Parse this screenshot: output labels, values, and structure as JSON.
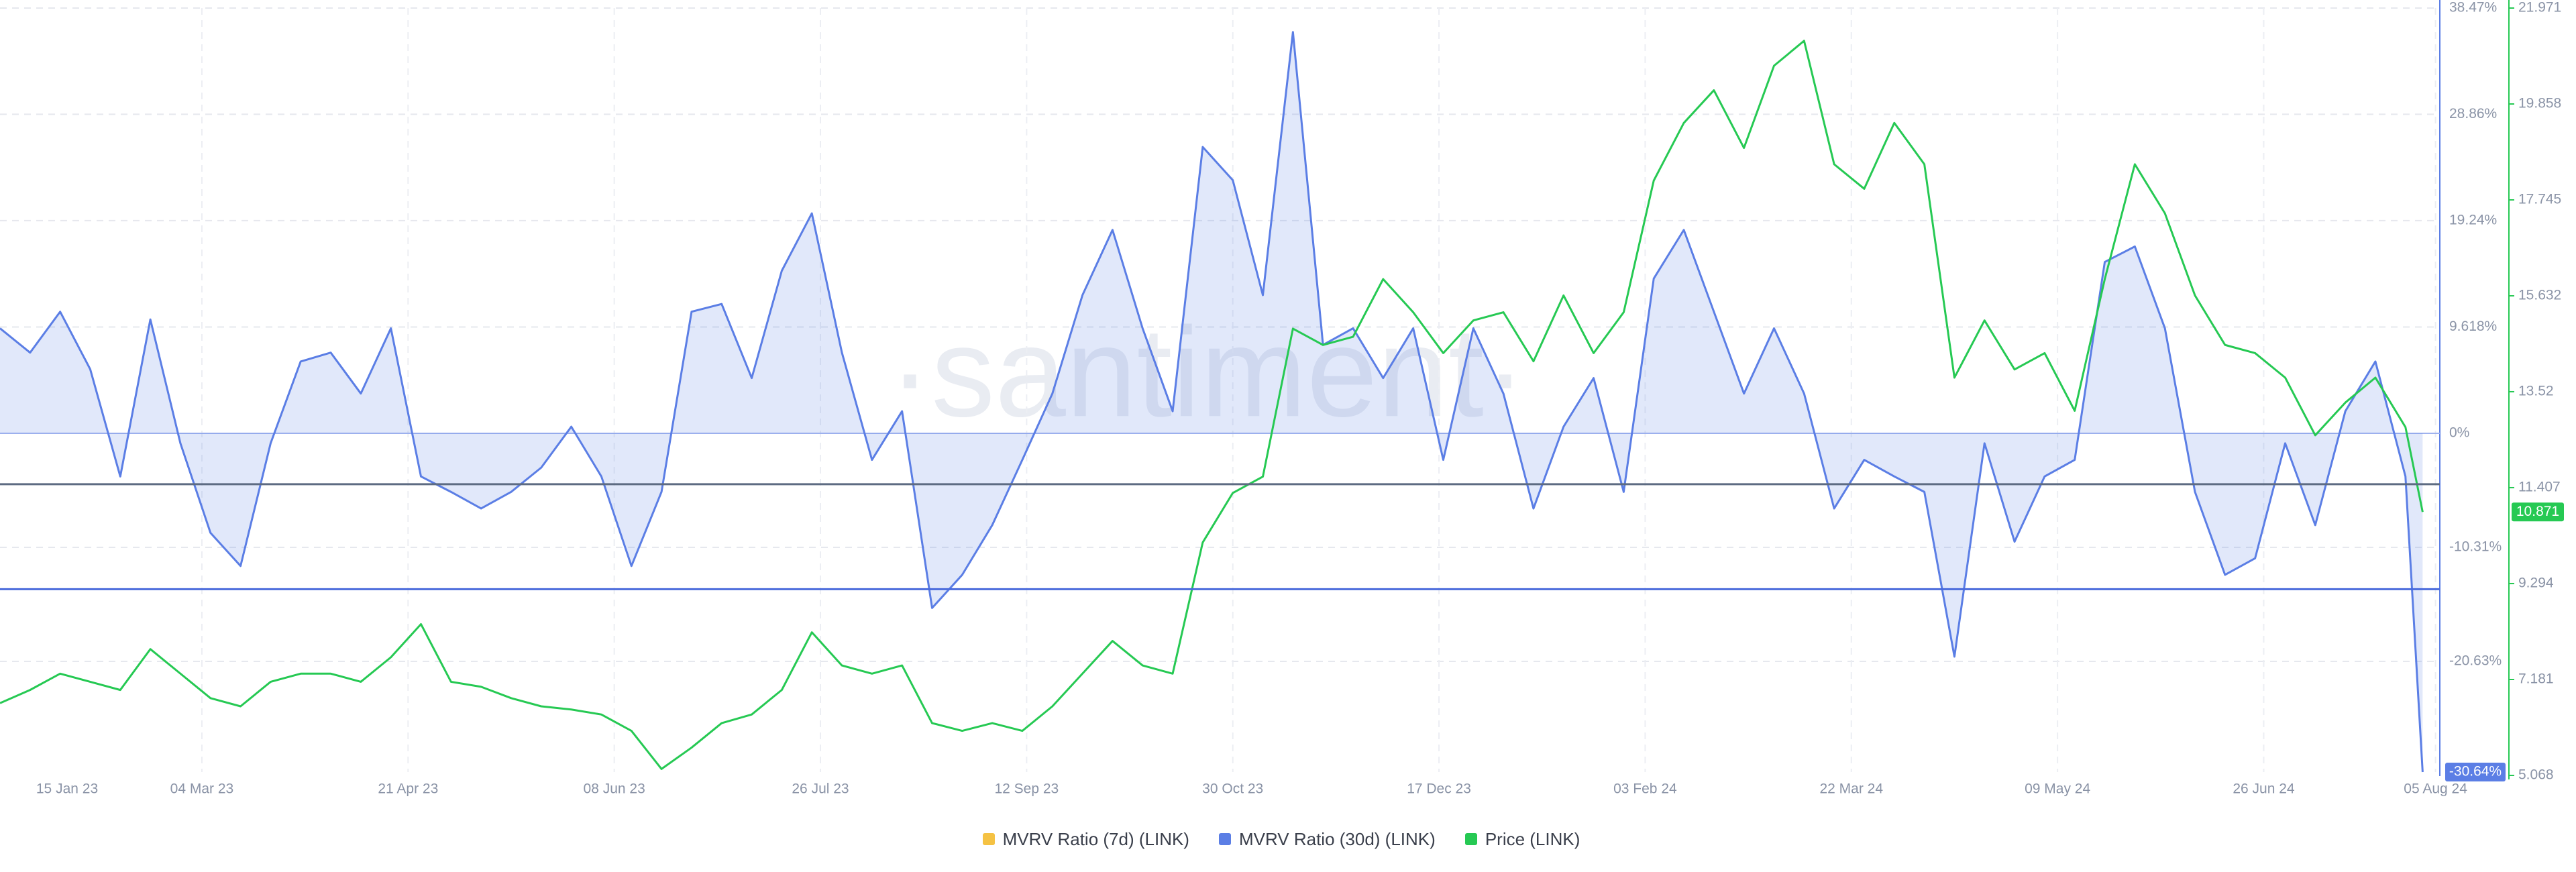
{
  "chart_data": {
    "type": "line",
    "watermark": "·santiment·",
    "x": [
      "2023-01-16",
      "2023-01-23",
      "2023-01-30",
      "2023-02-06",
      "2023-02-13",
      "2023-02-20",
      "2023-02-27",
      "2023-03-06",
      "2023-03-13",
      "2023-03-20",
      "2023-03-27",
      "2023-04-03",
      "2023-04-10",
      "2023-04-17",
      "2023-04-24",
      "2023-05-01",
      "2023-05-08",
      "2023-05-15",
      "2023-05-22",
      "2023-05-29",
      "2023-06-05",
      "2023-06-12",
      "2023-06-19",
      "2023-06-26",
      "2023-07-03",
      "2023-07-10",
      "2023-07-17",
      "2023-07-24",
      "2023-07-31",
      "2023-08-07",
      "2023-08-14",
      "2023-08-21",
      "2023-08-28",
      "2023-09-04",
      "2023-09-11",
      "2023-09-18",
      "2023-09-25",
      "2023-10-02",
      "2023-10-09",
      "2023-10-16",
      "2023-10-23",
      "2023-10-30",
      "2023-11-06",
      "2023-11-13",
      "2023-11-20",
      "2023-11-27",
      "2023-12-04",
      "2023-12-11",
      "2023-12-18",
      "2023-12-25",
      "2024-01-01",
      "2024-01-08",
      "2024-01-15",
      "2024-01-22",
      "2024-01-29",
      "2024-02-05",
      "2024-02-12",
      "2024-02-19",
      "2024-02-26",
      "2024-03-04",
      "2024-03-11",
      "2024-03-18",
      "2024-03-25",
      "2024-04-01",
      "2024-04-08",
      "2024-04-15",
      "2024-04-22",
      "2024-04-29",
      "2024-05-06",
      "2024-05-13",
      "2024-05-20",
      "2024-05-27",
      "2024-06-03",
      "2024-06-10",
      "2024-06-17",
      "2024-06-24",
      "2024-07-01",
      "2024-07-08",
      "2024-07-15",
      "2024-07-22",
      "2024-07-29",
      "2024-08-02"
    ],
    "xlim": [
      "2023-01-16",
      "2024-08-06"
    ],
    "xticks": [
      {
        "value": "2023-01-15",
        "label": "15 Jan 23"
      },
      {
        "value": "2023-03-04",
        "label": "04 Mar 23"
      },
      {
        "value": "2023-04-21",
        "label": "21 Apr 23"
      },
      {
        "value": "2023-06-08",
        "label": "08 Jun 23"
      },
      {
        "value": "2023-07-26",
        "label": "26 Jul 23"
      },
      {
        "value": "2023-09-12",
        "label": "12 Sep 23"
      },
      {
        "value": "2023-10-30",
        "label": "30 Oct 23"
      },
      {
        "value": "2023-12-17",
        "label": "17 Dec 23"
      },
      {
        "value": "2024-02-03",
        "label": "03 Feb 24"
      },
      {
        "value": "2024-03-22",
        "label": "22 Mar 24"
      },
      {
        "value": "2024-05-09",
        "label": "09 May 24"
      },
      {
        "value": "2024-06-26",
        "label": "26 Jun 24"
      },
      {
        "value": "2024-08-05",
        "label": "05 Aug 24"
      }
    ],
    "ylim": [
      -30.64,
      38.47
    ],
    "yticks": [
      {
        "value": 38.47,
        "label": "38.47%"
      },
      {
        "value": 28.86,
        "label": "28.86%"
      },
      {
        "value": 19.24,
        "label": "19.24%"
      },
      {
        "value": 9.618,
        "label": "9.618%"
      },
      {
        "value": 0,
        "label": "0%"
      },
      {
        "value": -10.31,
        "label": "-10.31%"
      },
      {
        "value": -20.63,
        "label": "-20.63%"
      }
    ],
    "y2lim": [
      5.068,
      21.971
    ],
    "y2ticks": [
      21.971,
      19.858,
      17.745,
      15.632,
      13.52,
      11.407,
      9.294,
      7.181,
      5.068
    ],
    "grid": true,
    "lines": [
      {
        "value": -4.6,
        "color": "#5d6b82"
      },
      {
        "value": -14.1,
        "color": "#4a6bdc"
      }
    ],
    "series": [
      {
        "name": "MVRV Ratio (7d) (LINK)",
        "color": "#f5c243",
        "values": [
          null,
          null,
          null,
          null,
          null,
          null,
          null,
          null,
          null,
          null,
          null,
          null,
          null,
          null,
          null,
          null,
          null,
          null,
          null,
          null,
          null,
          null,
          null,
          null,
          null,
          null,
          null,
          null,
          null,
          null,
          null,
          null,
          null,
          null,
          null,
          null,
          null,
          null,
          null,
          null,
          null,
          null,
          null,
          null,
          null,
          null,
          null,
          null,
          null,
          null,
          null,
          null,
          null,
          null,
          null,
          null,
          null,
          null,
          null,
          null,
          null,
          null,
          null,
          null,
          null,
          null,
          null,
          null,
          null,
          null,
          null,
          null,
          null,
          null,
          null,
          null,
          null,
          null,
          null,
          null,
          null,
          null
        ]
      },
      {
        "name": "MVRV Ratio (30d) (LINK)",
        "color": "#5b7ee5",
        "fill": true,
        "current_label": "-30.64%",
        "values": [
          9.5,
          7.3,
          11,
          5.8,
          -3.9,
          10.3,
          -0.9,
          -9,
          -12,
          -0.9,
          6.5,
          7.3,
          3.6,
          9.5,
          -3.9,
          -5.3,
          -6.8,
          -5.3,
          -3.1,
          0.6,
          -3.9,
          -12,
          -5.3,
          11,
          11.7,
          5,
          14.7,
          19.9,
          7.3,
          -2.4,
          2,
          -15.8,
          -12.8,
          -8.3,
          -2.4,
          3.6,
          12.5,
          18.4,
          9.5,
          2,
          25.9,
          22.9,
          12.5,
          36.3,
          8,
          9.5,
          5,
          9.5,
          -2.4,
          9.5,
          3.6,
          -6.8,
          0.6,
          5,
          -5.3,
          14,
          18.4,
          11,
          3.6,
          9.5,
          3.6,
          -6.8,
          -2.4,
          -3.9,
          -5.3,
          -20.2,
          -0.9,
          -9.8,
          -3.9,
          -2.4,
          15.5,
          16.9,
          9.5,
          -5.3,
          -12.8,
          -11.3,
          -0.9,
          -8.3,
          2,
          6.5,
          -3.9,
          -30.64
        ]
      },
      {
        "name": "Price (LINK)",
        "color": "#26c953",
        "axis": "y2",
        "values": [
          6.66,
          6.95,
          7.31,
          7.13,
          6.95,
          7.85,
          7.31,
          6.77,
          6.59,
          7.13,
          7.31,
          7.31,
          7.13,
          7.67,
          8.4,
          7.13,
          7.02,
          6.77,
          6.59,
          6.52,
          6.41,
          6.05,
          5.21,
          5.68,
          6.22,
          6.41,
          6.95,
          8.22,
          7.49,
          7.31,
          7.49,
          6.22,
          6.05,
          6.22,
          6.05,
          6.59,
          7.31,
          8.03,
          7.49,
          7.31,
          10.2,
          11.29,
          11.65,
          14.91,
          14.55,
          14.73,
          16,
          15.27,
          14.37,
          15.09,
          15.27,
          14.19,
          15.64,
          14.37,
          15.27,
          18.17,
          19.44,
          20.16,
          18.89,
          20.7,
          21.25,
          18.53,
          17.99,
          19.44,
          18.53,
          13.83,
          15.09,
          14.01,
          14.37,
          13.1,
          16,
          18.53,
          17.45,
          15.64,
          14.55,
          14.37,
          13.83,
          12.56,
          13.28,
          13.83,
          12.74,
          10.871
        ]
      }
    ]
  }
}
